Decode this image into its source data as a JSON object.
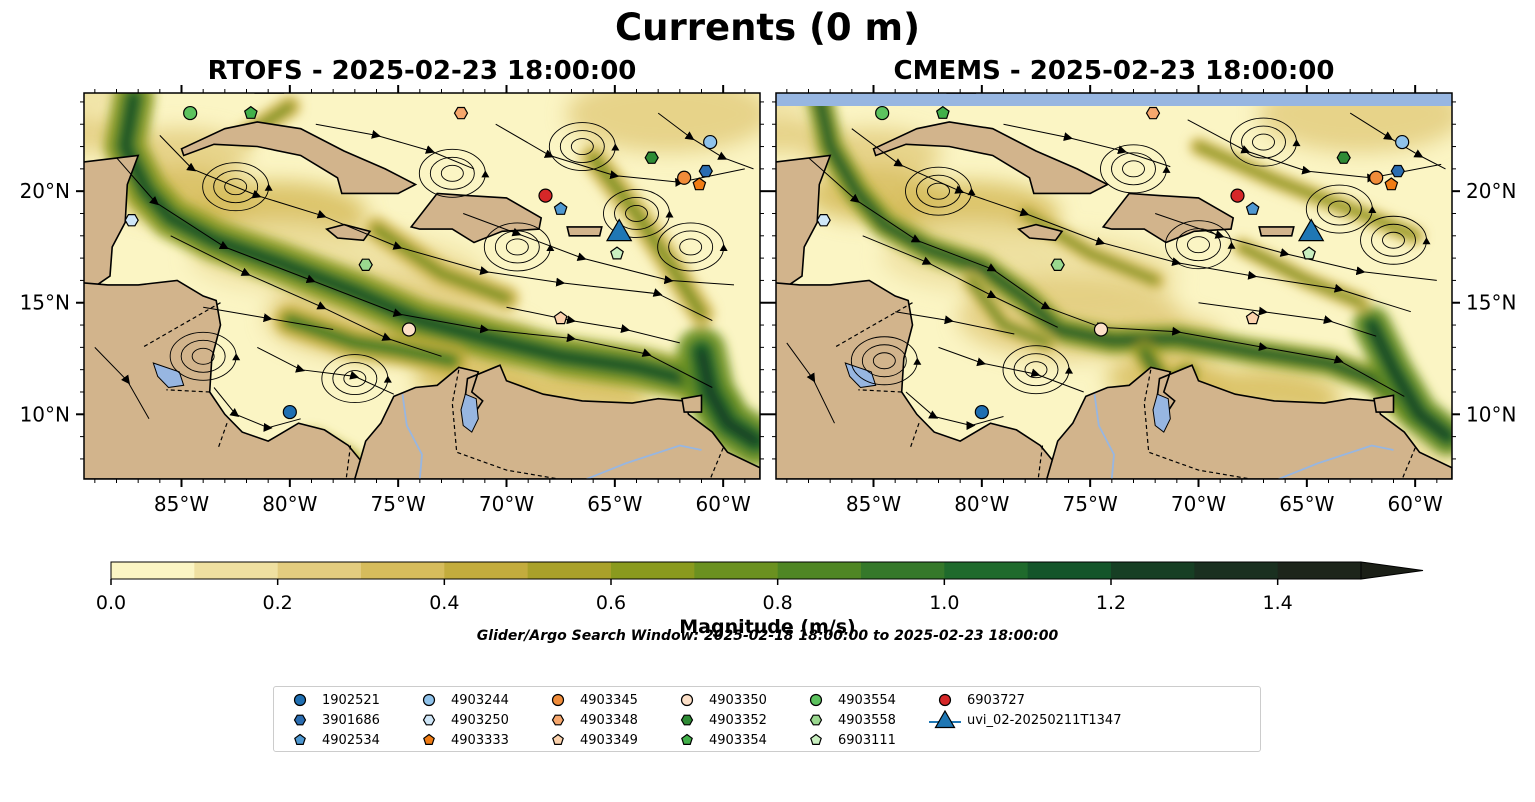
{
  "figure": {
    "title": "Currents (0 m)",
    "search_window": "Glider/Argo Search Window: 2025-02-18 18:00:00 to 2025-02-23 18:00:00"
  },
  "panels": [
    {
      "title": "RTOFS - 2025-02-23 18:00:00"
    },
    {
      "title": "CMEMS - 2025-02-23 18:00:00"
    }
  ],
  "colors": {
    "land": "#d2b48c",
    "lake": "#97b6e1",
    "ocean_ramp": [
      "#fbf5c4",
      "#efe0a1",
      "#e3cc7f",
      "#d6bc5c",
      "#c3ac3d",
      "#a9a12a",
      "#8a9a1e",
      "#6b9120",
      "#4f8624",
      "#35782a",
      "#1f6a2c",
      "#14552a",
      "#173f24",
      "#1a3020",
      "#1d251b",
      "#1b1f17"
    ]
  },
  "chart_data": {
    "type": "heatmap",
    "description_fields": {
      "variable": "Ocean surface current magnitude with streamlines",
      "depth": "0 m"
    },
    "xlim": [
      -89.5,
      -58.3
    ],
    "ylim": [
      7.1,
      24.4
    ],
    "xticks": [
      -85,
      -80,
      -75,
      -70,
      -65,
      -60
    ],
    "xtick_labels": [
      "85°W",
      "80°W",
      "75°W",
      "70°W",
      "65°W",
      "60°W"
    ],
    "yticks": [
      10,
      15,
      20
    ],
    "ytick_labels": [
      "10°N",
      "15°N",
      "20°N"
    ],
    "colorbar": {
      "label": "Magnitude (m/s)",
      "min": 0.0,
      "max": 1.5,
      "step": 0.1,
      "extend": "max",
      "ticks": [
        0.0,
        0.2,
        0.4,
        0.6,
        0.8,
        1.0,
        1.2,
        1.4
      ],
      "tick_labels": [
        "0.0",
        "0.2",
        "0.4",
        "0.6",
        "0.8",
        "1.0",
        "1.2",
        "1.4"
      ]
    },
    "platforms": [
      {
        "id": "1902521",
        "marker": "circle",
        "color": "#1f6fb2",
        "rtofs": [
          -80.0,
          10.1
        ],
        "cmems": [
          -80.0,
          10.1
        ]
      },
      {
        "id": "3901686",
        "marker": "hexagon",
        "color": "#2a6cb0",
        "rtofs": [
          -60.8,
          20.9
        ],
        "cmems": [
          -60.8,
          20.9
        ]
      },
      {
        "id": "4902534",
        "marker": "pentagon",
        "color": "#4f98d1",
        "rtofs": [
          -67.5,
          19.2
        ],
        "cmems": [
          -67.5,
          19.2
        ]
      },
      {
        "id": "4903244",
        "marker": "circle",
        "color": "#8fc2ea",
        "rtofs": [
          -60.6,
          22.2
        ],
        "cmems": [
          -60.6,
          22.2
        ]
      },
      {
        "id": "4903250",
        "marker": "hexagon",
        "color": "#cfe6f7",
        "rtofs": [
          -87.3,
          18.7
        ],
        "cmems": [
          -87.3,
          18.7
        ]
      },
      {
        "id": "4903333",
        "marker": "pentagon",
        "color": "#f07c14",
        "rtofs": [
          -61.1,
          20.3
        ],
        "cmems": [
          -61.1,
          20.3
        ]
      },
      {
        "id": "4903345",
        "marker": "circle",
        "color": "#f08c3a",
        "rtofs": [
          -61.8,
          20.6
        ],
        "cmems": [
          -61.8,
          20.6
        ]
      },
      {
        "id": "4903348",
        "marker": "hexagon",
        "color": "#f6a76d",
        "rtofs": [
          -72.1,
          23.5
        ],
        "cmems": [
          -72.1,
          23.5
        ]
      },
      {
        "id": "4903349",
        "marker": "pentagon",
        "color": "#fbd2ad",
        "rtofs": [
          -67.5,
          14.3
        ],
        "cmems": [
          -67.5,
          14.3
        ]
      },
      {
        "id": "4903350",
        "marker": "circle",
        "color": "#fde0c8",
        "rtofs": [
          -74.5,
          13.8
        ],
        "cmems": [
          -74.5,
          13.8
        ]
      },
      {
        "id": "4903352",
        "marker": "hexagon",
        "color": "#2e8b35",
        "rtofs": [
          -63.3,
          21.5
        ],
        "cmems": [
          -63.3,
          21.5
        ]
      },
      {
        "id": "4903354",
        "marker": "pentagon",
        "color": "#42b04a",
        "rtofs": [
          -81.8,
          23.5
        ],
        "cmems": [
          -81.8,
          23.5
        ]
      },
      {
        "id": "4903554",
        "marker": "circle",
        "color": "#5cc25e",
        "rtofs": [
          -84.6,
          23.5
        ],
        "cmems": [
          -84.6,
          23.5
        ]
      },
      {
        "id": "4903558",
        "marker": "hexagon",
        "color": "#9ad88f",
        "rtofs": [
          -76.5,
          16.7
        ],
        "cmems": [
          -76.5,
          16.7
        ]
      },
      {
        "id": "6903111",
        "marker": "pentagon",
        "color": "#c9efc0",
        "rtofs": [
          -64.9,
          17.2
        ],
        "cmems": [
          -64.9,
          17.2
        ]
      },
      {
        "id": "6903727",
        "marker": "circle",
        "color": "#d62728",
        "rtofs": [
          -68.2,
          19.8
        ],
        "cmems": [
          -68.2,
          19.8
        ]
      },
      {
        "id": "uvi_02-20250211T1347",
        "marker": "triangle",
        "color": "#1f77b4",
        "rtofs": [
          -64.8,
          18.1
        ],
        "cmems": [
          -64.8,
          18.1
        ]
      }
    ]
  }
}
